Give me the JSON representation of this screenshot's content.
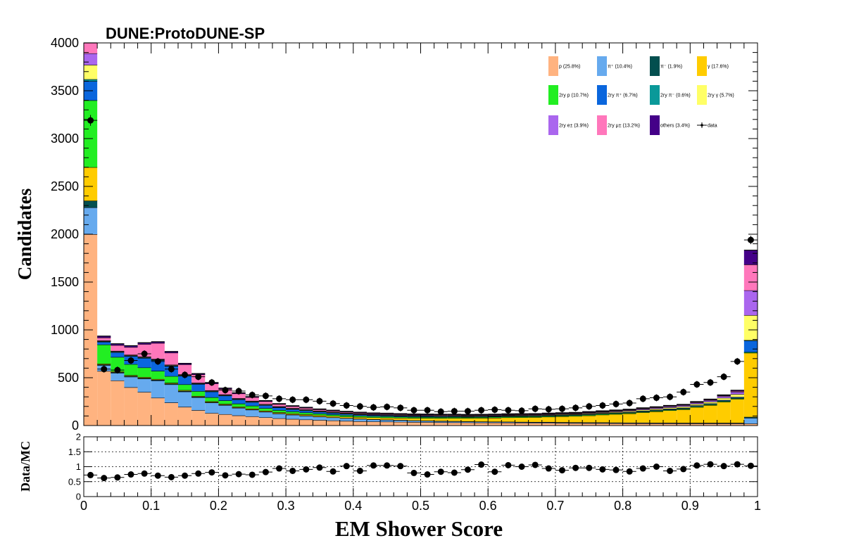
{
  "chart_data": [
    {
      "type": "bar",
      "stacked": true,
      "title": "DUNE:ProtoDUNE-SP",
      "xlabel": "EM Shower Score",
      "ylabel": "Candidates",
      "xlim": [
        0,
        1
      ],
      "ylim": [
        0,
        4000
      ],
      "bin_width": 0.02,
      "x_ticks": [
        "0",
        "0.1",
        "0.2",
        "0.3",
        "0.4",
        "0.5",
        "0.6",
        "0.7",
        "0.8",
        "0.9",
        "1"
      ],
      "y_ticks": [
        "0",
        "500",
        "1000",
        "1500",
        "2000",
        "2500",
        "3000",
        "3500",
        "4000"
      ],
      "bin_centers": [
        0.01,
        0.03,
        0.05,
        0.07,
        0.09,
        0.11,
        0.13,
        0.15,
        0.17,
        0.19,
        0.21,
        0.23,
        0.25,
        0.27,
        0.29,
        0.31,
        0.33,
        0.35,
        0.37,
        0.39,
        0.41,
        0.43,
        0.45,
        0.47,
        0.49,
        0.51,
        0.53,
        0.55,
        0.57,
        0.59,
        0.61,
        0.63,
        0.65,
        0.67,
        0.69,
        0.71,
        0.73,
        0.75,
        0.77,
        0.79,
        0.81,
        0.83,
        0.85,
        0.87,
        0.89,
        0.91,
        0.93,
        0.95,
        0.97,
        0.99
      ],
      "series": [
        {
          "name": "p (25.8%)",
          "color": "#ffb380",
          "values": [
            2000,
            570,
            470,
            400,
            350,
            290,
            240,
            195,
            160,
            130,
            118,
            105,
            95,
            85,
            75,
            68,
            62,
            57,
            52,
            48,
            44,
            42,
            40,
            38,
            36,
            35,
            33,
            32,
            31,
            30,
            30,
            29,
            28,
            27,
            27,
            26,
            25,
            24,
            24,
            23,
            22,
            22,
            21,
            21,
            20,
            20,
            20,
            20,
            20,
            20
          ]
        },
        {
          "name": "π⁺ (10.4%)",
          "color": "#66aaee",
          "values": [
            280,
            60,
            80,
            110,
            140,
            180,
            190,
            160,
            135,
            110,
            95,
            80,
            70,
            58,
            50,
            44,
            40,
            36,
            32,
            28,
            25,
            22,
            20,
            18,
            16,
            14,
            13,
            12,
            11,
            10,
            9,
            9,
            8,
            8,
            8,
            7,
            7,
            7,
            7,
            6,
            6,
            6,
            6,
            6,
            6,
            6,
            6,
            6,
            6,
            60
          ]
        },
        {
          "name": "π⁻ (1.9%)",
          "color": "#034f4f",
          "values": [
            70,
            8,
            8,
            8,
            8,
            8,
            8,
            7,
            6,
            5,
            5,
            4,
            4,
            3,
            3,
            3,
            3,
            2,
            2,
            2,
            2,
            2,
            2,
            2,
            2,
            2,
            2,
            2,
            2,
            2,
            2,
            2,
            2,
            2,
            2,
            2,
            2,
            2,
            2,
            2,
            2,
            2,
            2,
            2,
            2,
            2,
            2,
            2,
            2,
            10
          ]
        },
        {
          "name": "γ (17.6%)",
          "color": "#ffcc00",
          "values": [
            350,
            8,
            8,
            8,
            8,
            8,
            8,
            8,
            8,
            8,
            8,
            8,
            9,
            9,
            10,
            11,
            12,
            13,
            14,
            15,
            17,
            18,
            20,
            22,
            24,
            27,
            29,
            32,
            34,
            37,
            40,
            44,
            47,
            50,
            55,
            60,
            65,
            72,
            80,
            88,
            96,
            108,
            118,
            130,
            140,
            165,
            185,
            220,
            250,
            670
          ]
        },
        {
          "name": "2ry p (10.7%)",
          "color": "#22ee22",
          "values": [
            700,
            200,
            150,
            115,
            100,
            85,
            70,
            60,
            50,
            42,
            36,
            32,
            29,
            26,
            23,
            21,
            19,
            17,
            16,
            15,
            14,
            13,
            13,
            12,
            12,
            11,
            11,
            11,
            10,
            10,
            10,
            10,
            10,
            9,
            9,
            9,
            9,
            9,
            9,
            9,
            8,
            8,
            8,
            8,
            8,
            8,
            8,
            8,
            8,
            8
          ]
        },
        {
          "name": "2ry π⁺ (6.7%)",
          "color": "#0a66dd",
          "values": [
            200,
            30,
            50,
            85,
            100,
            110,
            105,
            90,
            75,
            60,
            50,
            44,
            38,
            32,
            28,
            24,
            21,
            18,
            16,
            14,
            12,
            11,
            10,
            9,
            8,
            8,
            7,
            7,
            6,
            6,
            6,
            6,
            6,
            6,
            6,
            6,
            6,
            6,
            6,
            6,
            6,
            7,
            7,
            7,
            7,
            8,
            8,
            9,
            10,
            120
          ]
        },
        {
          "name": "2ry π⁻ (0.6%)",
          "color": "#0a9999",
          "values": [
            20,
            3,
            4,
            4,
            5,
            6,
            5,
            4,
            4,
            3,
            3,
            3,
            3,
            2,
            2,
            2,
            2,
            2,
            2,
            2,
            2,
            2,
            2,
            2,
            2,
            2,
            2,
            2,
            2,
            2,
            2,
            2,
            2,
            2,
            2,
            2,
            2,
            2,
            2,
            2,
            2,
            2,
            2,
            2,
            2,
            2,
            2,
            2,
            2,
            5
          ]
        },
        {
          "name": "2ry γ (5.7%)",
          "color": "#ffff66",
          "values": [
            150,
            5,
            5,
            5,
            5,
            5,
            5,
            5,
            5,
            5,
            5,
            5,
            5,
            5,
            5,
            5,
            5,
            5,
            5,
            5,
            5,
            5,
            5,
            5,
            5,
            5,
            5,
            5,
            5,
            5,
            5,
            5,
            5,
            5,
            6,
            6,
            6,
            7,
            8,
            9,
            10,
            11,
            12,
            13,
            14,
            15,
            18,
            22,
            30,
            260
          ]
        },
        {
          "name": "2ry e± (3.9%)",
          "color": "#aa66ee",
          "values": [
            120,
            5,
            5,
            5,
            5,
            5,
            5,
            5,
            5,
            5,
            5,
            5,
            5,
            5,
            5,
            5,
            5,
            5,
            5,
            5,
            5,
            5,
            5,
            5,
            5,
            5,
            5,
            5,
            5,
            5,
            5,
            5,
            5,
            5,
            5,
            5,
            5,
            6,
            6,
            7,
            8,
            9,
            10,
            11,
            12,
            13,
            15,
            18,
            25,
            260
          ]
        },
        {
          "name": "2ry μ± (13.2%)",
          "color": "#ff77bb",
          "values": [
            110,
            30,
            60,
            80,
            130,
            165,
            125,
            105,
            85,
            70,
            58,
            48,
            38,
            28,
            22,
            18,
            15,
            13,
            11,
            9,
            8,
            7,
            7,
            6,
            6,
            6,
            6,
            5,
            5,
            5,
            5,
            5,
            5,
            5,
            5,
            5,
            5,
            5,
            5,
            5,
            5,
            5,
            5,
            5,
            5,
            6,
            6,
            6,
            8,
            270
          ]
        },
        {
          "name": "others (3.4%)",
          "color": "#440088",
          "values": [
            40,
            16,
            15,
            15,
            15,
            14,
            13,
            11,
            10,
            9,
            8,
            8,
            7,
            7,
            6,
            6,
            6,
            5,
            5,
            5,
            5,
            5,
            5,
            5,
            5,
            5,
            5,
            5,
            5,
            5,
            5,
            5,
            5,
            5,
            5,
            5,
            5,
            5,
            5,
            5,
            5,
            5,
            5,
            5,
            5,
            5,
            6,
            7,
            8,
            150
          ]
        }
      ],
      "data_series": {
        "name": "data",
        "values": [
          3190,
          590,
          580,
          680,
          750,
          670,
          590,
          530,
          510,
          450,
          370,
          360,
          320,
          310,
          280,
          270,
          270,
          255,
          230,
          210,
          200,
          190,
          195,
          185,
          160,
          160,
          145,
          150,
          150,
          160,
          165,
          160,
          155,
          175,
          170,
          175,
          185,
          200,
          210,
          225,
          235,
          280,
          290,
          300,
          350,
          430,
          450,
          510,
          670,
          1940
        ]
      },
      "legend_placement": "top-right",
      "grid": false
    },
    {
      "type": "scatter",
      "ylabel": "Data/MC",
      "xlabel": "EM Shower Score",
      "xlim": [
        0,
        1
      ],
      "ylim": [
        0,
        2
      ],
      "y_ticks": [
        "0",
        "0.5",
        "1",
        "1.5",
        "2"
      ],
      "grid": true,
      "x": [
        0.01,
        0.03,
        0.05,
        0.07,
        0.09,
        0.11,
        0.13,
        0.15,
        0.17,
        0.19,
        0.21,
        0.23,
        0.25,
        0.27,
        0.29,
        0.31,
        0.33,
        0.35,
        0.37,
        0.39,
        0.41,
        0.43,
        0.45,
        0.47,
        0.49,
        0.51,
        0.53,
        0.55,
        0.57,
        0.59,
        0.61,
        0.63,
        0.65,
        0.67,
        0.69,
        0.71,
        0.73,
        0.75,
        0.77,
        0.79,
        0.81,
        0.83,
        0.85,
        0.87,
        0.89,
        0.91,
        0.93,
        0.95,
        0.97,
        0.99
      ],
      "y": [
        0.72,
        0.62,
        0.64,
        0.74,
        0.77,
        0.7,
        0.65,
        0.7,
        0.77,
        0.81,
        0.71,
        0.75,
        0.73,
        0.82,
        0.94,
        0.86,
        0.91,
        0.97,
        0.84,
        1.02,
        0.86,
        1.04,
        1.04,
        1.02,
        0.79,
        0.74,
        0.83,
        0.8,
        0.9,
        1.07,
        0.83,
        1.05,
        1.0,
        1.06,
        0.94,
        0.88,
        0.96,
        0.96,
        0.91,
        0.89,
        0.84,
        0.94,
        1.0,
        0.86,
        0.92,
        1.04,
        1.08,
        1.02,
        1.08,
        1.03
      ]
    }
  ]
}
